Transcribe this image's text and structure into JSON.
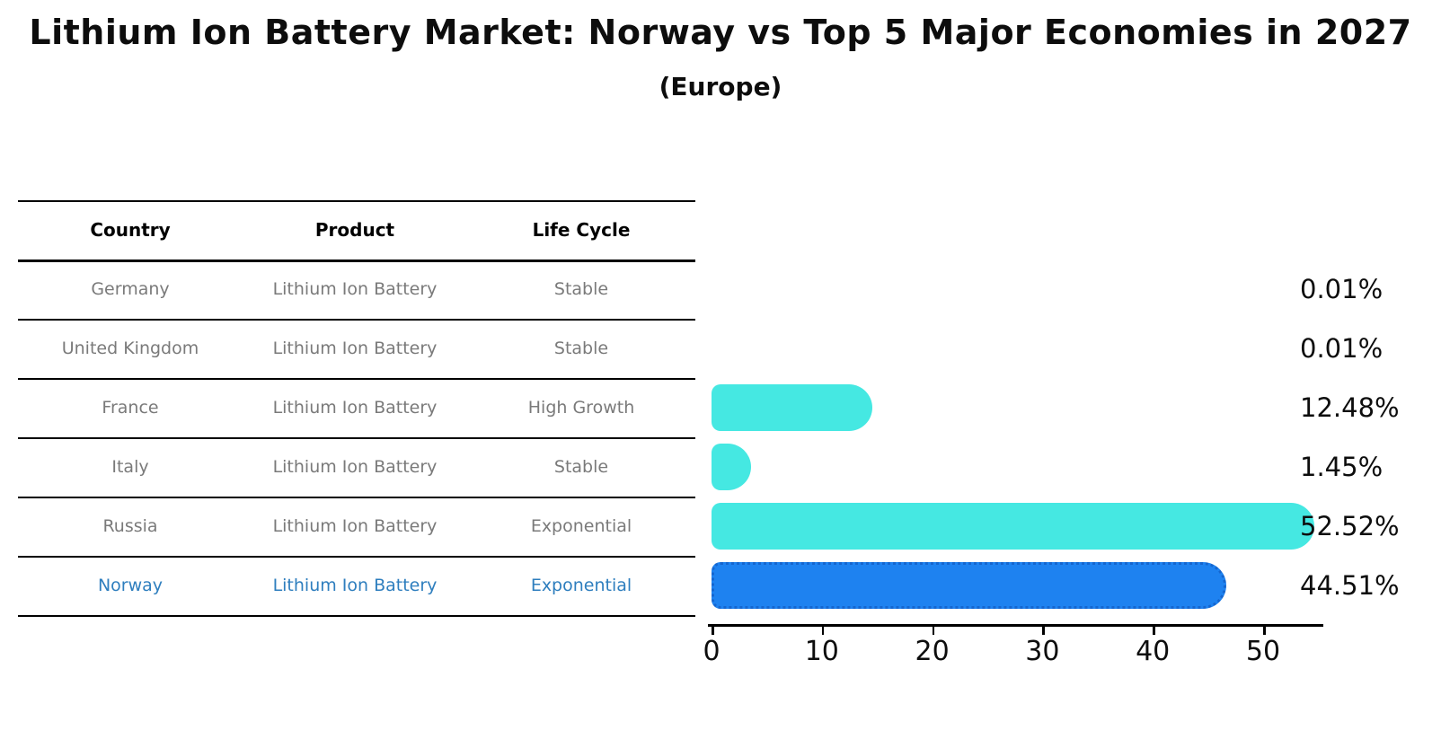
{
  "title": "Lithium Ion Battery Market: Norway vs Top 5 Major Economies in 2027",
  "subtitle": "(Europe)",
  "table": {
    "headers": [
      "Country",
      "Product",
      "Life Cycle"
    ],
    "rows": [
      {
        "country": "Germany",
        "product": "Lithium Ion Battery",
        "life_cycle": "Stable",
        "highlighted": false
      },
      {
        "country": "United Kingdom",
        "product": "Lithium Ion Battery",
        "life_cycle": "Stable",
        "highlighted": false
      },
      {
        "country": "France",
        "product": "Lithium Ion Battery",
        "life_cycle": "High Growth",
        "highlighted": false
      },
      {
        "country": "Italy",
        "product": "Lithium Ion Battery",
        "life_cycle": "Stable",
        "highlighted": false
      },
      {
        "country": "Russia",
        "product": "Lithium Ion Battery",
        "life_cycle": "Exponential",
        "highlighted": false
      },
      {
        "country": "Norway",
        "product": "Lithium Ion Battery",
        "life_cycle": "Exponential",
        "highlighted": true
      }
    ]
  },
  "chart_data": {
    "type": "bar",
    "orientation": "horizontal",
    "title": "Lithium Ion Battery Market: Norway vs Top 5 Major Economies in 2027",
    "subtitle": "(Europe)",
    "categories": [
      "Germany",
      "United Kingdom",
      "France",
      "Italy",
      "Russia",
      "Norway"
    ],
    "values": [
      0.01,
      0.01,
      12.48,
      1.45,
      52.52,
      44.51
    ],
    "value_labels": [
      "0.01%",
      "0.01%",
      "12.48%",
      "1.45%",
      "52.52%",
      "44.51%"
    ],
    "x_ticks": [
      0,
      10,
      20,
      30,
      40,
      50
    ],
    "xlim": [
      0,
      55.5
    ],
    "grid": false,
    "legend": null,
    "bar_color": "#45e8e2",
    "highlight_color": "#1e82f0",
    "highlight_index": 5,
    "text_color_normal": "#7a7a7a",
    "text_color_highlight": "#2e7ebe"
  }
}
